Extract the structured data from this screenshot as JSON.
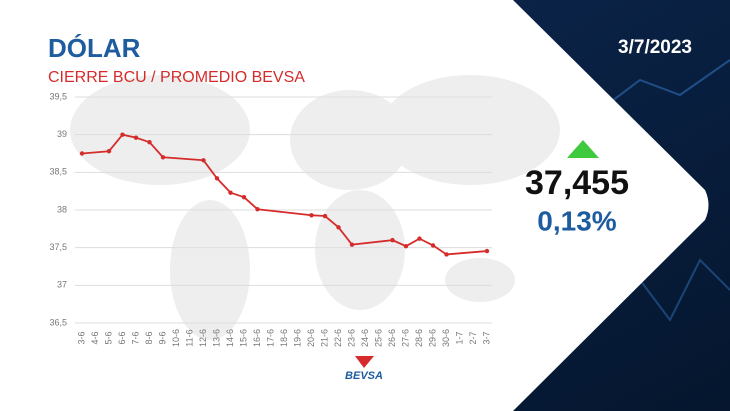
{
  "chart_data": {
    "type": "line",
    "title": "DÓLAR",
    "subtitle": "CIERRE BCU / PROMEDIO BEVSA",
    "categories": [
      "3-6",
      "4-6",
      "5-6",
      "6-6",
      "7-6",
      "8-6",
      "9-6",
      "10-6",
      "11-6",
      "12-6",
      "13-6",
      "14-6",
      "15-6",
      "16-6",
      "17-6",
      "18-6",
      "19-6",
      "20-6",
      "21-6",
      "22-6",
      "23-6",
      "24-6",
      "25-6",
      "26-6",
      "27-6",
      "28-6",
      "29-6",
      "30-6",
      "1-7",
      "2-7",
      "3-7"
    ],
    "series": [
      {
        "name": "Dólar",
        "color": "#d62b2b",
        "values": [
          38.75,
          null,
          38.78,
          39.0,
          38.96,
          38.9,
          38.7,
          null,
          null,
          38.66,
          38.42,
          38.23,
          38.17,
          38.01,
          null,
          null,
          null,
          37.93,
          37.92,
          37.77,
          37.54,
          null,
          null,
          37.6,
          37.52,
          37.62,
          37.53,
          37.41,
          null,
          null,
          37.455
        ]
      }
    ],
    "ylim": [
      36.5,
      39.5
    ],
    "yticks": [
      {
        "value": 36.5,
        "label": "36,5"
      },
      37,
      {
        "value": 37.5,
        "label": "37,5"
      },
      38,
      {
        "value": 38.5,
        "label": "38,5"
      },
      39,
      {
        "value": 39.5,
        "label": "39,5"
      }
    ],
    "grid": true,
    "date": "3/7/2023",
    "rate": "37,455",
    "change": "0,13%",
    "logo": "BEVSA"
  }
}
